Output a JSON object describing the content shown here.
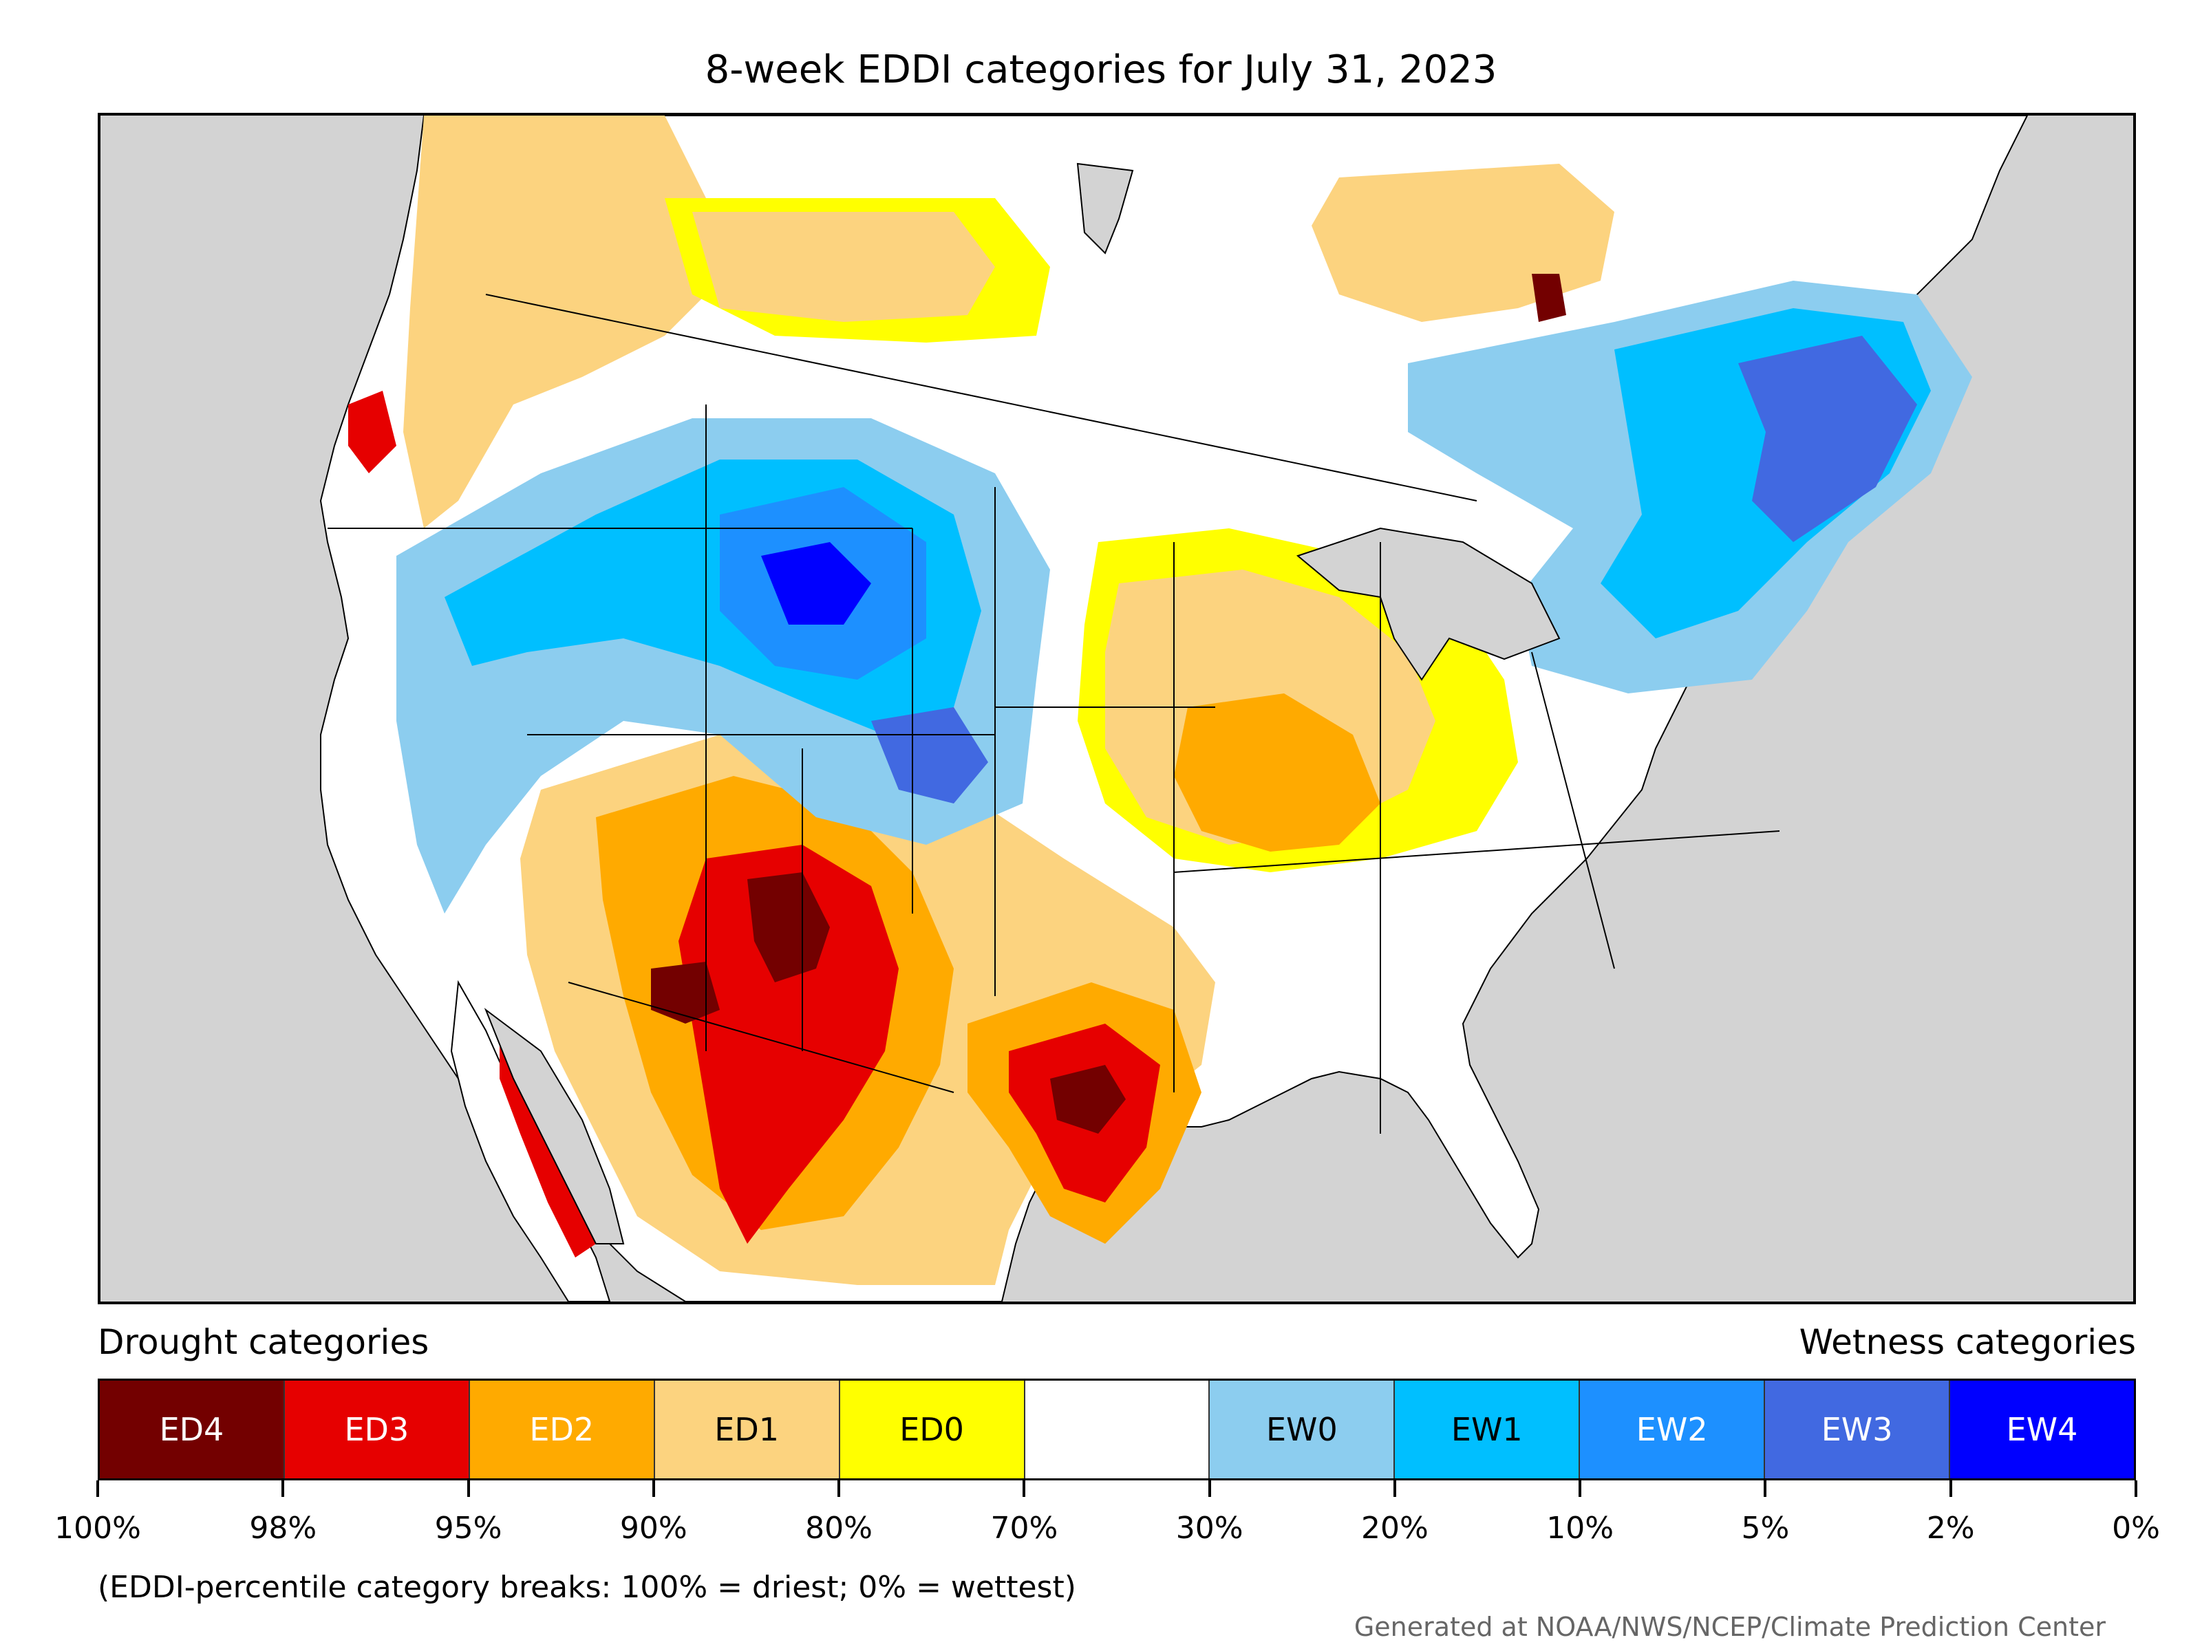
{
  "title": "8-week EDDI categories for July 31, 2023",
  "map": {
    "colors": {
      "ocean": "#d3d3d3",
      "land": "#ffffff",
      "ED4": "#730000",
      "ED3": "#e60000",
      "ED2": "#ffaa00",
      "ED1": "#fcd37f",
      "ED0": "#ffff00",
      "EW0": "#8ccdef",
      "EW1": "#00bfff",
      "EW2": "#1d90ff",
      "EW3": "#4169e1",
      "EW4": "#0000ff"
    }
  },
  "legend": {
    "drought_heading": "Drought categories",
    "wetness_heading": "Wetness categories",
    "categories": [
      {
        "label": "ED4",
        "color": "#730000",
        "text_color": "#ffffff"
      },
      {
        "label": "ED3",
        "color": "#e60000",
        "text_color": "#ffffff"
      },
      {
        "label": "ED2",
        "color": "#ffaa00",
        "text_color": "#ffffff"
      },
      {
        "label": "ED1",
        "color": "#fcd37f",
        "text_color": "#000000"
      },
      {
        "label": "ED0",
        "color": "#ffff00",
        "text_color": "#000000"
      },
      {
        "label": "",
        "color": "#ffffff",
        "text_color": "#000000"
      },
      {
        "label": "EW0",
        "color": "#8ccdef",
        "text_color": "#000000"
      },
      {
        "label": "EW1",
        "color": "#00bfff",
        "text_color": "#000000"
      },
      {
        "label": "EW2",
        "color": "#1d90ff",
        "text_color": "#ffffff"
      },
      {
        "label": "EW3",
        "color": "#4169e1",
        "text_color": "#ffffff"
      },
      {
        "label": "EW4",
        "color": "#0000ff",
        "text_color": "#ffffff"
      }
    ],
    "ticks": [
      "100%",
      "98%",
      "95%",
      "90%",
      "80%",
      "70%",
      "30%",
      "20%",
      "10%",
      "5%",
      "2%",
      "0%"
    ]
  },
  "note": "(EDDI-percentile category breaks: 100% = driest; 0% = wettest)",
  "credit": "Generated at NOAA/NWS/NCEP/Climate Prediction Center"
}
